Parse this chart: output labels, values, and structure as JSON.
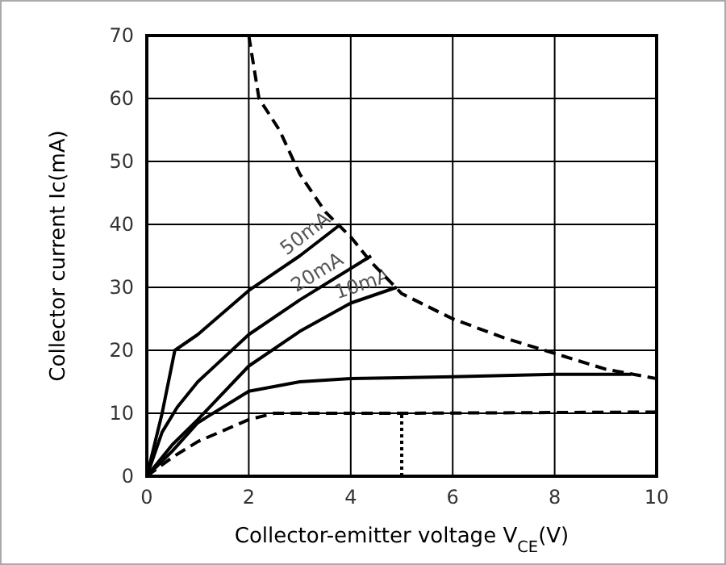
{
  "chart_data": {
    "type": "line",
    "xlabel": "Collector-emitter voltage V$_{CE}$(V)",
    "ylabel": "Collector current Ic(mA)",
    "xlim": [
      0,
      10
    ],
    "ylim": [
      0,
      70
    ],
    "xticks": [
      0,
      2,
      4,
      6,
      8,
      10
    ],
    "yticks": [
      0,
      10,
      20,
      30,
      40,
      50,
      60,
      70
    ],
    "grid": true,
    "marker": "none",
    "series": [
      {
        "name": "50mA",
        "color": "#000000",
        "line_style": "solid",
        "x": [
          0,
          0.3,
          0.55,
          1,
          2,
          3,
          3.8
        ],
        "values": [
          0,
          10,
          20,
          22.5,
          29.5,
          35,
          40
        ]
      },
      {
        "name": "20mA",
        "color": "#000000",
        "line_style": "solid",
        "x": [
          0,
          0.3,
          0.6,
          1,
          2,
          3,
          4.4
        ],
        "values": [
          0,
          7,
          11,
          15,
          22.5,
          28,
          35
        ]
      },
      {
        "name": "10mA",
        "color": "#000000",
        "line_style": "solid",
        "x": [
          0,
          0.5,
          1,
          2,
          3,
          4,
          4.9
        ],
        "values": [
          0,
          5,
          9,
          17.5,
          23,
          27.5,
          30
        ]
      },
      {
        "color": "#000000",
        "line_style": "solid",
        "x": [
          0,
          0.5,
          1,
          2,
          3,
          4,
          6,
          8,
          9.5
        ],
        "values": [
          0,
          4,
          8.5,
          13.5,
          15,
          15.5,
          15.8,
          16.2,
          16.2
        ]
      },
      {
        "color": "#000000",
        "line_style": "dashed",
        "x": [
          0,
          0.5,
          1,
          2,
          2.5,
          5,
          10
        ],
        "values": [
          0,
          3,
          5.5,
          9,
          10,
          10,
          10.2
        ]
      },
      {
        "color": "#000000",
        "line_style": "dashed",
        "x": [
          2,
          2.2,
          2.6,
          3,
          3.5,
          4,
          4.4,
          5,
          6,
          7,
          8,
          9,
          10
        ],
        "values": [
          70,
          60,
          55,
          48,
          42,
          38,
          34,
          29,
          25,
          22,
          19.5,
          17,
          15.5
        ]
      },
      {
        "color": "#000000",
        "line_style": "dotted",
        "x": [
          5,
          5
        ],
        "values": [
          0,
          10
        ]
      }
    ]
  }
}
